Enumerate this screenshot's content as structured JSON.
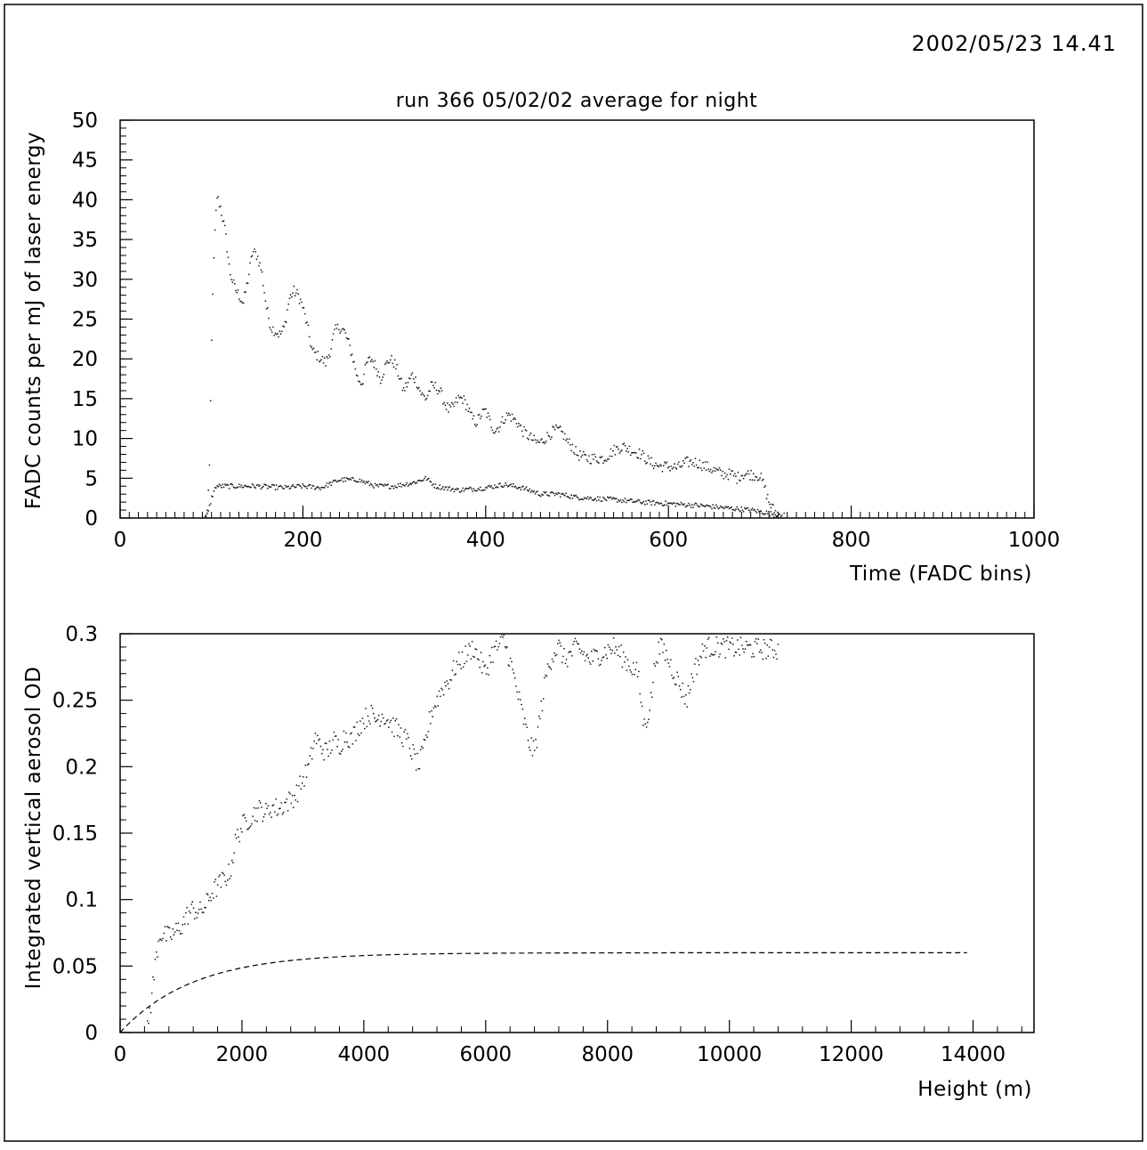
{
  "header": {
    "timestamp": "2002/05/23   14.41"
  },
  "chart_data": [
    {
      "type": "scatter",
      "title": "run 366 05/02/02 average for night",
      "xlabel": "Time (FADC bins)",
      "ylabel": "FADC counts per mJ of laser energy",
      "xlim": [
        0,
        1000
      ],
      "ylim": [
        0,
        50
      ],
      "xticks": [
        0,
        200,
        400,
        600,
        800,
        1000
      ],
      "yticks": [
        0,
        5,
        10,
        15,
        20,
        25,
        30,
        35,
        40,
        45,
        50
      ],
      "grid": false,
      "series": [
        {
          "style": "dots",
          "anchors": [
            [
              93,
              0
            ],
            [
              96,
              1
            ],
            [
              98,
              7
            ],
            [
              100,
              22
            ],
            [
              103,
              34
            ],
            [
              106,
              40.5
            ],
            [
              110,
              39
            ],
            [
              115,
              36
            ],
            [
              120,
              31
            ],
            [
              125,
              29
            ],
            [
              130,
              28
            ],
            [
              135,
              27
            ],
            [
              140,
              30
            ],
            [
              145,
              33.5
            ],
            [
              150,
              33
            ],
            [
              155,
              31
            ],
            [
              160,
              26.5
            ],
            [
              165,
              24
            ],
            [
              170,
              23.5
            ],
            [
              175,
              23
            ],
            [
              180,
              24
            ],
            [
              185,
              27.5
            ],
            [
              190,
              28.5
            ],
            [
              195,
              28
            ],
            [
              200,
              26.5
            ],
            [
              205,
              24
            ],
            [
              210,
              21
            ],
            [
              215,
              20.5
            ],
            [
              220,
              20
            ],
            [
              225,
              19.5
            ],
            [
              230,
              21
            ],
            [
              235,
              23.5
            ],
            [
              240,
              24
            ],
            [
              245,
              23.5
            ],
            [
              250,
              22
            ],
            [
              255,
              20
            ],
            [
              260,
              17.5
            ],
            [
              265,
              17
            ],
            [
              270,
              19.5
            ],
            [
              275,
              20
            ],
            [
              280,
              19
            ],
            [
              285,
              17.5
            ],
            [
              290,
              19
            ],
            [
              295,
              20
            ],
            [
              300,
              19.5
            ],
            [
              305,
              18
            ],
            [
              310,
              16
            ],
            [
              315,
              17
            ],
            [
              320,
              18
            ],
            [
              325,
              17
            ],
            [
              330,
              15.5
            ],
            [
              335,
              15
            ],
            [
              340,
              16.5
            ],
            [
              345,
              16.5
            ],
            [
              350,
              16
            ],
            [
              355,
              14.5
            ],
            [
              360,
              13.5
            ],
            [
              365,
              14
            ],
            [
              370,
              15
            ],
            [
              375,
              15
            ],
            [
              380,
              14
            ],
            [
              385,
              12.5
            ],
            [
              390,
              12
            ],
            [
              395,
              13
            ],
            [
              400,
              13.5
            ],
            [
              405,
              12
            ],
            [
              410,
              11
            ],
            [
              415,
              11.5
            ],
            [
              420,
              12.5
            ],
            [
              425,
              13
            ],
            [
              430,
              12.5
            ],
            [
              435,
              12
            ],
            [
              440,
              11
            ],
            [
              445,
              10.5
            ],
            [
              450,
              10
            ],
            [
              455,
              9.5
            ],
            [
              460,
              9.5
            ],
            [
              465,
              10
            ],
            [
              470,
              10.5
            ],
            [
              475,
              11
            ],
            [
              480,
              11
            ],
            [
              485,
              10.5
            ],
            [
              490,
              9.5
            ],
            [
              495,
              9
            ],
            [
              500,
              8
            ],
            [
              510,
              7.5
            ],
            [
              520,
              7.5
            ],
            [
              530,
              7.5
            ],
            [
              540,
              8.5
            ],
            [
              550,
              9
            ],
            [
              560,
              8.5
            ],
            [
              570,
              8
            ],
            [
              580,
              7
            ],
            [
              590,
              6.5
            ],
            [
              600,
              6.5
            ],
            [
              610,
              6.3
            ],
            [
              620,
              7
            ],
            [
              630,
              7
            ],
            [
              640,
              6.5
            ],
            [
              650,
              6
            ],
            [
              660,
              5.5
            ],
            [
              670,
              5.5
            ],
            [
              675,
              5
            ],
            [
              680,
              5.5
            ],
            [
              690,
              5.5
            ],
            [
              700,
              5.3
            ],
            [
              705,
              4
            ],
            [
              710,
              2
            ],
            [
              715,
              1
            ],
            [
              720,
              0.5
            ],
            [
              725,
              0.2
            ],
            [
              730,
              0
            ]
          ],
          "noise": 0.7
        },
        {
          "style": "dots",
          "anchors": [
            [
              93,
              0
            ],
            [
              96,
              0.5
            ],
            [
              100,
              2.5
            ],
            [
              105,
              4
            ],
            [
              120,
              4
            ],
            [
              150,
              4
            ],
            [
              180,
              3.8
            ],
            [
              200,
              4
            ],
            [
              220,
              3.8
            ],
            [
              240,
              4.8
            ],
            [
              260,
              4.8
            ],
            [
              280,
              4
            ],
            [
              300,
              4
            ],
            [
              320,
              4.4
            ],
            [
              335,
              5
            ],
            [
              345,
              4
            ],
            [
              370,
              3.5
            ],
            [
              400,
              3.8
            ],
            [
              420,
              4.2
            ],
            [
              440,
              3.8
            ],
            [
              460,
              3
            ],
            [
              480,
              3
            ],
            [
              500,
              2.6
            ],
            [
              540,
              2.3
            ],
            [
              570,
              2
            ],
            [
              600,
              1.8
            ],
            [
              630,
              1.6
            ],
            [
              660,
              1.3
            ],
            [
              690,
              1
            ],
            [
              710,
              0.6
            ],
            [
              720,
              0.3
            ],
            [
              725,
              0
            ]
          ],
          "noise": 0.3
        }
      ]
    },
    {
      "type": "scatter",
      "title": "",
      "xlabel": "Height (m)",
      "ylabel": "Integrated vertical aerosol OD",
      "xlim": [
        0,
        15000
      ],
      "ylim": [
        0,
        0.3
      ],
      "xticks": [
        0,
        2000,
        4000,
        6000,
        8000,
        10000,
        12000,
        14000
      ],
      "yticks": [
        0,
        0.05,
        0.1,
        0.15,
        0.2,
        0.25,
        0.3
      ],
      "ytick_labels": [
        "0",
        "0.05",
        "0.1",
        "0.15",
        "0.2",
        "0.25",
        "0.3"
      ],
      "grid": false,
      "series": [
        {
          "style": "dots",
          "anchors": [
            [
              450,
              0.005
            ],
            [
              500,
              0.02
            ],
            [
              550,
              0.04
            ],
            [
              600,
              0.06
            ],
            [
              650,
              0.075
            ],
            [
              700,
              0.073
            ],
            [
              800,
              0.072
            ],
            [
              900,
              0.075
            ],
            [
              1000,
              0.08
            ],
            [
              1100,
              0.088
            ],
            [
              1200,
              0.093
            ],
            [
              1300,
              0.09
            ],
            [
              1400,
              0.095
            ],
            [
              1500,
              0.105
            ],
            [
              1600,
              0.11
            ],
            [
              1700,
              0.115
            ],
            [
              1800,
              0.12
            ],
            [
              1900,
              0.145
            ],
            [
              2000,
              0.155
            ],
            [
              2100,
              0.16
            ],
            [
              2200,
              0.165
            ],
            [
              2300,
              0.168
            ],
            [
              2400,
              0.165
            ],
            [
              2500,
              0.17
            ],
            [
              2600,
              0.168
            ],
            [
              2700,
              0.172
            ],
            [
              2800,
              0.175
            ],
            [
              2900,
              0.18
            ],
            [
              3000,
              0.19
            ],
            [
              3100,
              0.2
            ],
            [
              3200,
              0.222
            ],
            [
              3300,
              0.215
            ],
            [
              3400,
              0.21
            ],
            [
              3500,
              0.22
            ],
            [
              3600,
              0.215
            ],
            [
              3700,
              0.225
            ],
            [
              3800,
              0.22
            ],
            [
              3900,
              0.23
            ],
            [
              4000,
              0.235
            ],
            [
              4100,
              0.24
            ],
            [
              4200,
              0.235
            ],
            [
              4300,
              0.24
            ],
            [
              4400,
              0.235
            ],
            [
              4500,
              0.23
            ],
            [
              4600,
              0.225
            ],
            [
              4700,
              0.22
            ],
            [
              4800,
              0.21
            ],
            [
              4900,
              0.2
            ],
            [
              5000,
              0.215
            ],
            [
              5100,
              0.24
            ],
            [
              5200,
              0.25
            ],
            [
              5300,
              0.26
            ],
            [
              5400,
              0.265
            ],
            [
              5500,
              0.275
            ],
            [
              5600,
              0.28
            ],
            [
              5700,
              0.285
            ],
            [
              5800,
              0.29
            ],
            [
              5900,
              0.28
            ],
            [
              6000,
              0.27
            ],
            [
              6100,
              0.285
            ],
            [
              6200,
              0.29
            ],
            [
              6300,
              0.295
            ],
            [
              6400,
              0.28
            ],
            [
              6500,
              0.26
            ],
            [
              6600,
              0.24
            ],
            [
              6700,
              0.22
            ],
            [
              6800,
              0.21
            ],
            [
              6900,
              0.24
            ],
            [
              7000,
              0.27
            ],
            [
              7100,
              0.285
            ],
            [
              7200,
              0.29
            ],
            [
              7300,
              0.28
            ],
            [
              7500,
              0.29
            ],
            [
              7700,
              0.28
            ],
            [
              7900,
              0.285
            ],
            [
              8100,
              0.29
            ],
            [
              8300,
              0.28
            ],
            [
              8500,
              0.27
            ],
            [
              8600,
              0.23
            ],
            [
              8700,
              0.245
            ],
            [
              8800,
              0.285
            ],
            [
              8900,
              0.29
            ],
            [
              9000,
              0.28
            ],
            [
              9100,
              0.27
            ],
            [
              9200,
              0.26
            ],
            [
              9300,
              0.25
            ],
            [
              9400,
              0.27
            ],
            [
              9600,
              0.29
            ],
            [
              9800,
              0.29
            ],
            [
              10800,
              0.288
            ]
          ],
          "noise": 0.008,
          "clip_top": 0.3
        },
        {
          "style": "dashed-line",
          "formula": "0.06*(1-exp(-h/1200))",
          "x_range": [
            0,
            13900
          ]
        }
      ]
    }
  ]
}
